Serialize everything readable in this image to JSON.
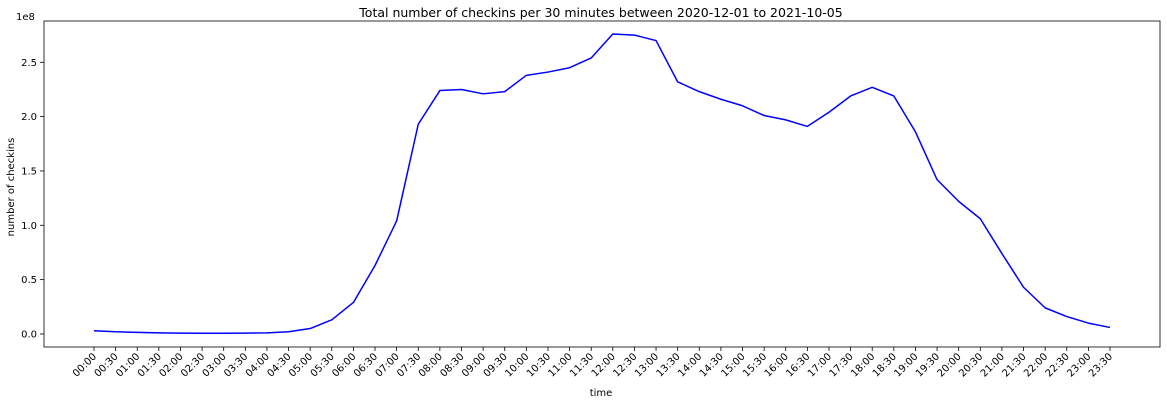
{
  "chart_data": {
    "type": "line",
    "title": "Total number of checkins per 30 minutes between 2020-12-01 to 2021-10-05",
    "xlabel": "time",
    "ylabel": "number of checkins",
    "y_offset_label": "1e8",
    "ylim": [
      -0.12,
      2.88
    ],
    "y_ticks": [
      0.0,
      0.5,
      1.0,
      1.5,
      2.0,
      2.5
    ],
    "y_tick_labels": [
      "0.0",
      "0.5",
      "1.0",
      "1.5",
      "2.0",
      "2.5"
    ],
    "grid": false,
    "line_color": "#0000ff",
    "x": [
      "00:00",
      "00:30",
      "01:00",
      "01:30",
      "02:00",
      "02:30",
      "03:00",
      "03:30",
      "04:00",
      "04:30",
      "05:00",
      "05:30",
      "06:00",
      "06:30",
      "07:00",
      "07:30",
      "08:00",
      "08:30",
      "09:00",
      "09:30",
      "10:00",
      "10:30",
      "11:00",
      "11:30",
      "12:00",
      "12:30",
      "13:00",
      "13:30",
      "14:00",
      "14:30",
      "15:00",
      "15:30",
      "16:00",
      "16:30",
      "17:00",
      "17:30",
      "18:00",
      "18:30",
      "19:00",
      "19:30",
      "20:00",
      "20:30",
      "21:00",
      "21:30",
      "22:00",
      "22:30",
      "23:00",
      "23:30"
    ],
    "series": [
      {
        "values": [
          0.03,
          0.02,
          0.015,
          0.01,
          0.008,
          0.007,
          0.007,
          0.008,
          0.01,
          0.02,
          0.05,
          0.13,
          0.29,
          0.63,
          1.04,
          1.93,
          2.24,
          2.25,
          2.21,
          2.23,
          2.38,
          2.41,
          2.45,
          2.54,
          2.76,
          2.75,
          2.7,
          2.32,
          2.23,
          2.16,
          2.1,
          2.01,
          1.97,
          1.91,
          2.04,
          2.19,
          2.27,
          2.19,
          1.86,
          1.42,
          1.22,
          1.06,
          0.74,
          0.43,
          0.24,
          0.16,
          0.1,
          0.06
        ]
      }
    ]
  }
}
